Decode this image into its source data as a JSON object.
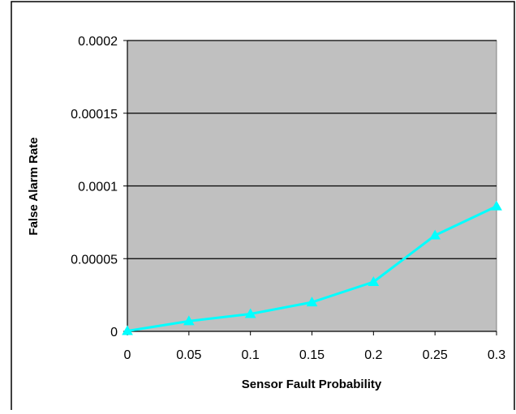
{
  "chart_data": {
    "type": "line",
    "title": "",
    "xlabel": "Sensor Fault Probability",
    "ylabel": "False Alarm Rate",
    "x": [
      0,
      0.05,
      0.1,
      0.15,
      0.2,
      0.25,
      0.3
    ],
    "x_tick_labels": [
      "0",
      "0.05",
      "0.1",
      "0.15",
      "0.2",
      "0.25",
      "0.3"
    ],
    "y_tick_values": [
      0,
      5e-05,
      0.0001,
      0.00015,
      0.0002
    ],
    "y_tick_labels": [
      "0",
      "0.00005",
      "0.0001",
      "0.00015",
      "0.0002"
    ],
    "xlim": [
      0,
      0.3
    ],
    "ylim": [
      0,
      0.0002
    ],
    "grid": "horizontal",
    "legend": "none",
    "series": [
      {
        "values": [
          3e-07,
          7e-06,
          1.2e-05,
          2e-05,
          3.4e-05,
          6.6e-05,
          8.6e-05
        ],
        "marker": "triangle",
        "color": "#00ffff"
      }
    ],
    "colors": {
      "plot_background": "#c0c0c0",
      "gridline": "#000000",
      "axis": "#000000",
      "frame": "#000000"
    }
  }
}
